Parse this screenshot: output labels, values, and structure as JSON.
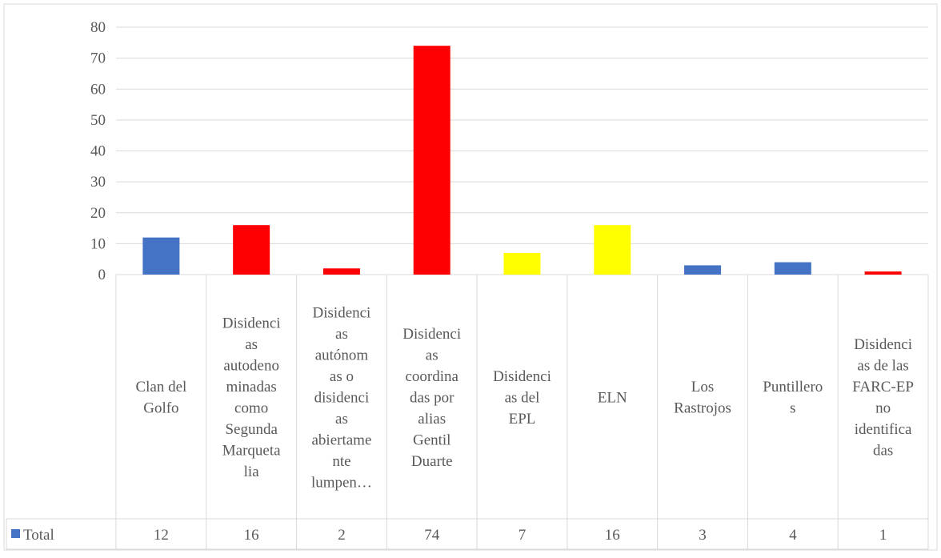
{
  "chart_data": {
    "type": "bar",
    "categories": [
      [
        "Clan del",
        "Golfo"
      ],
      [
        "Disidenci",
        "as",
        "autodeno",
        "minadas",
        "como",
        "Segunda",
        "Marqueta",
        "lia"
      ],
      [
        "Disidenci",
        "as",
        "autónom",
        "as o",
        "disidenci",
        "as",
        "abiertame",
        "nte",
        "lumpen…"
      ],
      [
        "Disidenci",
        "as",
        "coordina",
        "das por",
        "alias",
        "Gentil",
        "Duarte"
      ],
      [
        "Disidenci",
        "as del",
        "EPL"
      ],
      [
        "ELN"
      ],
      [
        "Los",
        "Rastrojos"
      ],
      [
        "Puntillero",
        "s"
      ],
      [
        "Disidenci",
        "as de las",
        "FARC-EP",
        "no",
        "identifica",
        "das"
      ]
    ],
    "series": [
      {
        "name": "Total",
        "values": [
          12,
          16,
          2,
          74,
          7,
          16,
          3,
          4,
          1
        ],
        "values_text": [
          "12",
          "16",
          "2",
          "74",
          "7",
          "16",
          "3",
          "4",
          "1"
        ],
        "colors": [
          "#4472C4",
          "#FF0000",
          "#FF0000",
          "#FF0000",
          "#FFFF00",
          "#FFFF00",
          "#4472C4",
          "#4472C4",
          "#FF0000"
        ],
        "legend_color": "#4472C4"
      }
    ],
    "yticks": [
      "0",
      "10",
      "20",
      "30",
      "40",
      "50",
      "60",
      "70",
      "80"
    ],
    "ylim": [
      0,
      80
    ],
    "grid": true,
    "legend": "data-table-left",
    "colors": {
      "grid": "#D9D9D9",
      "text": "#595959",
      "border": "#D9D9D9"
    }
  }
}
